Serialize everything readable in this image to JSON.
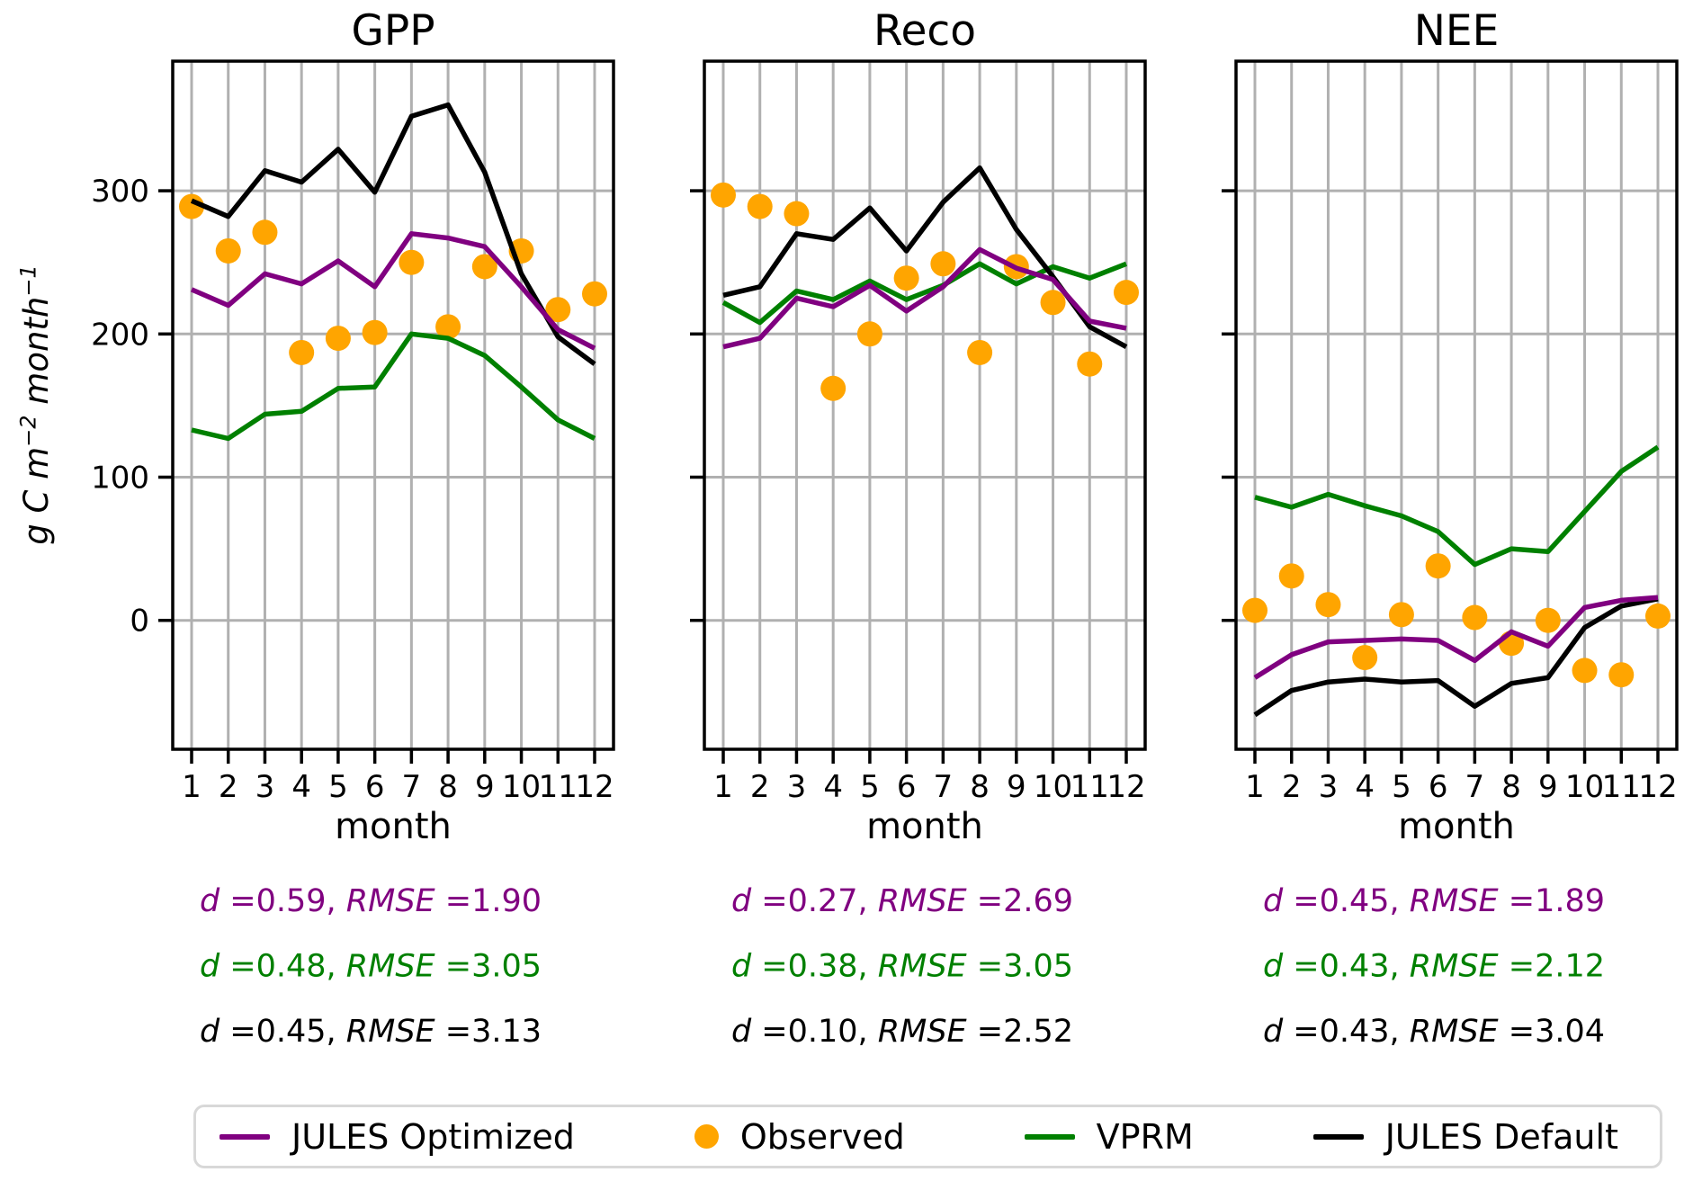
{
  "axis": {
    "ylabel_parts": [
      "g C m",
      "−2",
      " month",
      "−1"
    ],
    "yticks": [
      0,
      100,
      200,
      300
    ],
    "xlabel": "month"
  },
  "colors": {
    "jules_optimized": "#800080",
    "observed": "#FFA500",
    "vprm": "#008000",
    "jules_default": "#000000",
    "grid": "#b0b0b0"
  },
  "chart_data": [
    {
      "type": "line+scatter",
      "title": "GPP",
      "xlabel": "month",
      "ylabel": "g C m⁻² month⁻¹",
      "x": [
        1,
        2,
        3,
        4,
        5,
        6,
        7,
        8,
        9,
        10,
        11,
        12
      ],
      "ylim": [
        -90,
        390
      ],
      "yticks": [
        0,
        100,
        200,
        300
      ],
      "grid": true,
      "series": [
        {
          "name": "Observed",
          "type": "scatter",
          "color": "#FFA500",
          "values": [
            289,
            258,
            271,
            187,
            197,
            201,
            250,
            205,
            247,
            258,
            217,
            228
          ]
        },
        {
          "name": "VPRM",
          "type": "line",
          "color": "#008000",
          "values": [
            133,
            127,
            144,
            146,
            162,
            163,
            200,
            197,
            185,
            163,
            140,
            127
          ]
        },
        {
          "name": "JULES Default",
          "type": "line",
          "color": "#000000",
          "values": [
            293,
            282,
            314,
            306,
            329,
            299,
            352,
            360,
            313,
            242,
            198,
            179
          ]
        },
        {
          "name": "JULES Optimized",
          "type": "line",
          "color": "#800080",
          "values": [
            231,
            220,
            242,
            235,
            251,
            233,
            270,
            267,
            261,
            233,
            203,
            190
          ]
        }
      ],
      "stats": [
        {
          "model": "JULES Optimized",
          "d": "0.59",
          "rmse": "1.90",
          "color": "#800080"
        },
        {
          "model": "VPRM",
          "d": "0.48",
          "rmse": "3.05",
          "color": "#008000"
        },
        {
          "model": "JULES Default",
          "d": "0.45",
          "rmse": "3.13",
          "color": "#000000"
        }
      ]
    },
    {
      "type": "line+scatter",
      "title": "Reco",
      "xlabel": "month",
      "ylabel": "g C m⁻² month⁻¹",
      "x": [
        1,
        2,
        3,
        4,
        5,
        6,
        7,
        8,
        9,
        10,
        11,
        12
      ],
      "ylim": [
        -90,
        390
      ],
      "yticks": [
        0,
        100,
        200,
        300
      ],
      "grid": true,
      "series": [
        {
          "name": "Observed",
          "type": "scatter",
          "color": "#FFA500",
          "values": [
            297,
            289,
            284,
            162,
            200,
            239,
            249,
            187,
            247,
            222,
            179,
            229
          ]
        },
        {
          "name": "VPRM",
          "type": "line",
          "color": "#008000",
          "values": [
            222,
            208,
            230,
            224,
            237,
            224,
            234,
            249,
            235,
            247,
            239,
            249
          ]
        },
        {
          "name": "JULES Default",
          "type": "line",
          "color": "#000000",
          "values": [
            227,
            233,
            270,
            266,
            288,
            258,
            292,
            316,
            273,
            240,
            205,
            191
          ]
        },
        {
          "name": "JULES Optimized",
          "type": "line",
          "color": "#800080",
          "values": [
            191,
            197,
            225,
            219,
            234,
            216,
            233,
            259,
            246,
            238,
            209,
            204
          ]
        }
      ],
      "stats": [
        {
          "model": "JULES Optimized",
          "d": "0.27",
          "rmse": "2.69",
          "color": "#800080"
        },
        {
          "model": "VPRM",
          "d": "0.38",
          "rmse": "3.05",
          "color": "#008000"
        },
        {
          "model": "JULES Default",
          "d": "0.10",
          "rmse": "2.52",
          "color": "#000000"
        }
      ]
    },
    {
      "type": "line+scatter",
      "title": "NEE",
      "xlabel": "month",
      "ylabel": "g C m⁻² month⁻¹",
      "x": [
        1,
        2,
        3,
        4,
        5,
        6,
        7,
        8,
        9,
        10,
        11,
        12
      ],
      "ylim": [
        -90,
        390
      ],
      "yticks": [
        0,
        100,
        200,
        300
      ],
      "grid": true,
      "series": [
        {
          "name": "Observed",
          "type": "scatter",
          "color": "#FFA500",
          "values": [
            7,
            31,
            11,
            -26,
            4,
            38,
            2,
            -16,
            0,
            -35,
            -38,
            3
          ]
        },
        {
          "name": "VPRM",
          "type": "line",
          "color": "#008000",
          "values": [
            86,
            79,
            88,
            80,
            73,
            62,
            39,
            50,
            48,
            76,
            104,
            121
          ]
        },
        {
          "name": "JULES Default",
          "type": "line",
          "color": "#000000",
          "values": [
            -66,
            -49,
            -43,
            -41,
            -43,
            -42,
            -60,
            -44,
            -40,
            -5,
            10,
            15
          ]
        },
        {
          "name": "JULES Optimized",
          "type": "line",
          "color": "#800080",
          "values": [
            -40,
            -24,
            -15,
            -14,
            -13,
            -14,
            -28,
            -8,
            -18,
            9,
            14,
            16
          ]
        }
      ],
      "stats": [
        {
          "model": "JULES Optimized",
          "d": "0.45",
          "rmse": "1.89",
          "color": "#800080"
        },
        {
          "model": "VPRM",
          "d": "0.43",
          "rmse": "2.12",
          "color": "#008000"
        },
        {
          "model": "JULES Default",
          "d": "0.43",
          "rmse": "3.04",
          "color": "#000000"
        }
      ]
    }
  ],
  "stats_labels": {
    "d": "d",
    "rmse": "RMSE"
  },
  "legend": {
    "items": [
      {
        "label": "JULES Optimized",
        "marker": "line",
        "color": "#800080"
      },
      {
        "label": "Observed",
        "marker": "dot",
        "color": "#FFA500"
      },
      {
        "label": "VPRM",
        "marker": "line",
        "color": "#008000"
      },
      {
        "label": "JULES Default",
        "marker": "line",
        "color": "#000000"
      }
    ]
  }
}
